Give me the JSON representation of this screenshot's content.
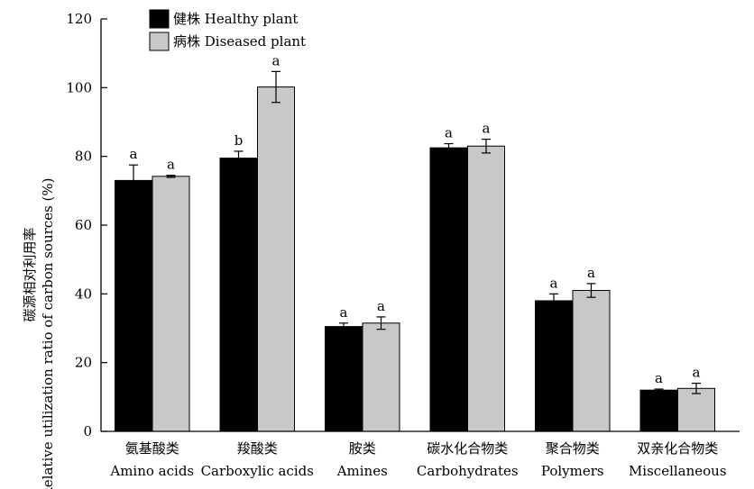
{
  "chart_data": {
    "type": "bar",
    "ylabel_cn": "碳源相对利用率",
    "ylabel_en": "Relative utilization ratio of carbon sources (%)",
    "ylim": [
      0,
      120
    ],
    "yticks": [
      0,
      20,
      40,
      60,
      80,
      100,
      120
    ],
    "categories": [
      {
        "cn": "氨基酸类",
        "en": "Amino acids"
      },
      {
        "cn": "羧酸类",
        "en": "Carboxylic acids"
      },
      {
        "cn": "胺类",
        "en": "Amines"
      },
      {
        "cn": "碳水化合物类",
        "en": "Carbohydrates"
      },
      {
        "cn": "聚合物类",
        "en": "Polymers"
      },
      {
        "cn": "双亲化合物类",
        "en": "Miscellaneous"
      }
    ],
    "series": [
      {
        "name": "健株 Healthy plant",
        "color": "#000000",
        "values": [
          73,
          79.5,
          30.5,
          82.5,
          38,
          12
        ],
        "errors": [
          4.5,
          2,
          1,
          1.2,
          2,
          0.3
        ],
        "letters": [
          "a",
          "b",
          "a",
          "a",
          "a",
          "a"
        ]
      },
      {
        "name": "病株 Diseased plant",
        "color": "#c8c8c8",
        "values": [
          74.2,
          100.2,
          31.5,
          83,
          41,
          12.5
        ],
        "errors": [
          0.3,
          4.5,
          1.8,
          2,
          2,
          1.5
        ],
        "letters": [
          "a",
          "a",
          "a",
          "a",
          "a",
          "a"
        ]
      }
    ],
    "legend_position": "top-left",
    "grid": false
  }
}
